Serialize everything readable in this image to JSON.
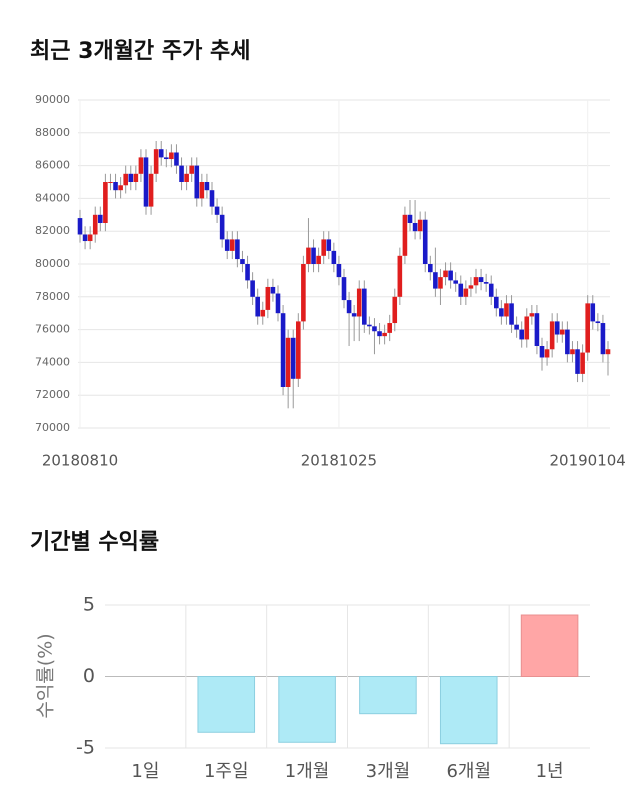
{
  "chart_data": [
    {
      "type": "candlestick",
      "title": "최근 3개월간 주가 추세",
      "categories": [
        "20180810",
        null,
        null,
        null,
        null,
        null,
        null,
        null,
        null,
        null,
        null,
        null,
        null,
        null,
        null,
        null,
        null,
        null,
        null,
        null,
        null,
        null,
        null,
        null,
        null,
        null,
        null,
        null,
        null,
        null,
        null,
        null,
        null,
        null,
        null,
        null,
        null,
        null,
        null,
        null,
        null,
        null,
        null,
        null,
        null,
        null,
        null,
        null,
        null,
        null,
        null,
        "20181025",
        null,
        null,
        null,
        null,
        null,
        null,
        null,
        null,
        null,
        null,
        null,
        null,
        null,
        null,
        null,
        null,
        null,
        null,
        null,
        null,
        null,
        null,
        null,
        null,
        null,
        null,
        null,
        null,
        null,
        null,
        null,
        null,
        null,
        null,
        null,
        null,
        null,
        null,
        null,
        null,
        null,
        null,
        null,
        null,
        null,
        null,
        null,
        null,
        "20190104",
        null,
        null,
        null,
        null
      ],
      "open": [
        82800,
        81800,
        81400,
        81800,
        83000,
        82500,
        85000,
        85000,
        84500,
        84800,
        85500,
        85000,
        85500,
        86500,
        83500,
        85500,
        87000,
        86500,
        86400,
        86800,
        86000,
        85000,
        85500,
        86000,
        84000,
        85000,
        84500,
        83500,
        83000,
        81500,
        80800,
        81500,
        80300,
        80000,
        79000,
        78000,
        76800,
        77200,
        78600,
        78200,
        77000,
        72500,
        75500,
        73000,
        76500,
        80000,
        81000,
        80000,
        80500,
        81500,
        80800,
        80000,
        79200,
        77800,
        77000,
        76800,
        78500,
        76300,
        76200,
        75900,
        75600,
        75800,
        76400,
        78000,
        80500,
        83000,
        82500,
        82000,
        82700,
        80000,
        79500,
        78500,
        79200,
        79600,
        79000,
        78800,
        78000,
        78500,
        78700,
        79200,
        78900,
        78800,
        78000,
        77300,
        76800,
        77600,
        76300,
        76000,
        75400,
        76800,
        77000,
        75000,
        74300,
        74800,
        76500,
        75700,
        76000,
        74500,
        74800,
        73300,
        74600,
        77600,
        76500,
        76400,
        74500
      ],
      "high": [
        83300,
        82300,
        82300,
        83500,
        83500,
        85500,
        85500,
        85500,
        85300,
        86000,
        86000,
        86000,
        87000,
        87000,
        86000,
        87500,
        87500,
        87000,
        87300,
        87300,
        86500,
        86000,
        86500,
        86500,
        85500,
        85500,
        85000,
        84000,
        83500,
        82000,
        82000,
        82000,
        80800,
        80500,
        79500,
        78500,
        77700,
        79100,
        79100,
        78700,
        77500,
        76000,
        76000,
        77000,
        80500,
        82800,
        81500,
        81000,
        82000,
        82000,
        81300,
        80500,
        79700,
        78300,
        77500,
        79000,
        79000,
        76800,
        76700,
        76400,
        76300,
        76900,
        78500,
        81000,
        83500,
        83900,
        83900,
        83200,
        83200,
        80500,
        81000,
        79700,
        80100,
        80100,
        79500,
        79300,
        79000,
        79200,
        79700,
        79700,
        79400,
        79300,
        78500,
        77800,
        78100,
        78100,
        76800,
        76500,
        77300,
        77500,
        77500,
        75500,
        75300,
        77000,
        77000,
        76500,
        76500,
        75300,
        75300,
        75100,
        78100,
        78100,
        77000,
        76900,
        75300
      ],
      "low": [
        81300,
        80900,
        80900,
        81300,
        82000,
        82000,
        84500,
        84000,
        84000,
        84300,
        84500,
        84500,
        85000,
        83000,
        83000,
        85000,
        86000,
        85900,
        85900,
        85500,
        84500,
        84500,
        85000,
        83500,
        83500,
        84000,
        83000,
        82500,
        81000,
        80300,
        80300,
        79800,
        79500,
        78500,
        77500,
        76300,
        76300,
        76700,
        77700,
        76500,
        72000,
        71200,
        71200,
        72500,
        76000,
        79500,
        79500,
        79500,
        80000,
        80300,
        79500,
        78700,
        77300,
        75000,
        75300,
        75300,
        75800,
        75700,
        74500,
        75100,
        75100,
        75300,
        75900,
        77500,
        80000,
        82000,
        81500,
        81500,
        79500,
        79000,
        78000,
        77500,
        78700,
        78500,
        78300,
        77500,
        77500,
        78000,
        78200,
        78400,
        78300,
        77500,
        76800,
        76300,
        76300,
        75800,
        75500,
        74900,
        74900,
        76300,
        74500,
        73500,
        73800,
        74300,
        75200,
        75200,
        74000,
        74000,
        72800,
        72800,
        74100,
        76000,
        75900,
        74000,
        73200
      ],
      "close": [
        81800,
        81400,
        81800,
        83000,
        82500,
        85000,
        85000,
        84500,
        84800,
        85500,
        85000,
        85500,
        86500,
        83500,
        85500,
        87000,
        86500,
        86400,
        86800,
        86000,
        85000,
        85500,
        86000,
        84000,
        85000,
        84500,
        83500,
        83000,
        81500,
        80800,
        81500,
        80300,
        80000,
        79000,
        78000,
        76800,
        77200,
        78600,
        78200,
        77000,
        72500,
        75500,
        73000,
        76500,
        80000,
        81000,
        80000,
        80500,
        81500,
        80800,
        80000,
        79200,
        77800,
        77000,
        76800,
        78500,
        76300,
        76200,
        75900,
        75600,
        75800,
        76400,
        78000,
        80500,
        83000,
        82500,
        82000,
        82700,
        80000,
        79500,
        78500,
        79200,
        79600,
        79000,
        78800,
        78000,
        78500,
        78700,
        79200,
        78900,
        78800,
        78000,
        77300,
        76800,
        77600,
        76300,
        76000,
        75400,
        76800,
        77000,
        75000,
        74300,
        74800,
        76500,
        75700,
        76000,
        74500,
        74800,
        73300,
        74600,
        77600,
        76500,
        76400,
        74500,
        74800
      ],
      "up_color": "#e01e1e",
      "down_color": "#1a1ac8",
      "ylim": [
        70000,
        90000
      ],
      "yticks": [
        70000,
        72000,
        74000,
        76000,
        78000,
        80000,
        82000,
        84000,
        86000,
        88000,
        90000
      ],
      "grid": true
    },
    {
      "type": "bar",
      "title": "기간별 수익률",
      "ylabel": "수익률(%)",
      "categories": [
        "1일",
        "1주일",
        "1개월",
        "3개월",
        "6개월",
        "1년"
      ],
      "values": [
        0,
        -3.9,
        -4.6,
        -2.6,
        -4.7,
        4.3
      ],
      "positive_color": "#ffa6a6",
      "negative_color": "#aeeaf6",
      "ylim": [
        -5,
        5
      ],
      "yticks": [
        -5,
        0,
        5
      ],
      "grid": true
    }
  ]
}
